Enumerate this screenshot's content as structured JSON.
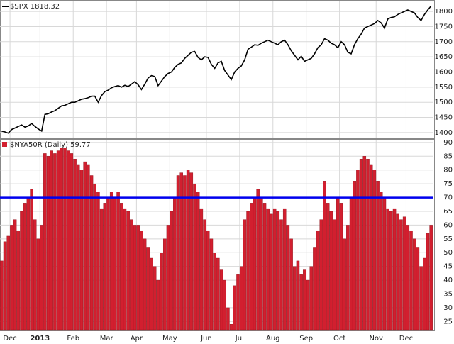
{
  "chart_data": [
    {
      "type": "line",
      "title": "$SPX 1818.32",
      "color": "#000000",
      "values": [
        1405,
        1402,
        1398,
        1410,
        1415,
        1420,
        1425,
        1418,
        1422,
        1430,
        1420,
        1412,
        1405,
        1460,
        1462,
        1468,
        1472,
        1480,
        1488,
        1490,
        1495,
        1500,
        1500,
        1505,
        1510,
        1512,
        1515,
        1520,
        1520,
        1500,
        1522,
        1535,
        1540,
        1548,
        1552,
        1555,
        1550,
        1556,
        1552,
        1560,
        1568,
        1558,
        1542,
        1560,
        1580,
        1588,
        1585,
        1555,
        1570,
        1585,
        1595,
        1600,
        1615,
        1625,
        1630,
        1645,
        1655,
        1665,
        1668,
        1648,
        1640,
        1650,
        1648,
        1625,
        1612,
        1630,
        1635,
        1605,
        1590,
        1575,
        1600,
        1612,
        1620,
        1640,
        1675,
        1682,
        1690,
        1688,
        1695,
        1700,
        1705,
        1700,
        1695,
        1690,
        1700,
        1705,
        1690,
        1670,
        1655,
        1640,
        1652,
        1635,
        1640,
        1645,
        1660,
        1680,
        1690,
        1710,
        1705,
        1695,
        1690,
        1680,
        1700,
        1690,
        1665,
        1660,
        1690,
        1710,
        1725,
        1745,
        1750,
        1755,
        1760,
        1770,
        1762,
        1745,
        1775,
        1780,
        1782,
        1790,
        1795,
        1800,
        1805,
        1800,
        1795,
        1780,
        1770,
        1790,
        1805,
        1818
      ],
      "xlim": [
        0,
        130
      ],
      "ylim": [
        1381,
        1833
      ],
      "yticks": [
        1400,
        1450,
        1500,
        1550,
        1600,
        1650,
        1700,
        1750,
        1800
      ],
      "grid": true
    },
    {
      "type": "bar",
      "title": "$NYA50R (Daily) 59.77",
      "color": "#d21f2f",
      "hline": 70,
      "hline_color": "#0000ee",
      "values": [
        47,
        54,
        56,
        60,
        62,
        58,
        65,
        68,
        70,
        73,
        62,
        55,
        60,
        86,
        85,
        87,
        86,
        87,
        88,
        88,
        87,
        86,
        84,
        82,
        80,
        83,
        82,
        78,
        75,
        72,
        66,
        68,
        70,
        72,
        70,
        72,
        68,
        66,
        65,
        62,
        60,
        60,
        58,
        55,
        52,
        48,
        45,
        40,
        50,
        55,
        60,
        65,
        70,
        78,
        79,
        78,
        80,
        79,
        75,
        72,
        66,
        62,
        58,
        55,
        50,
        48,
        44,
        40,
        30,
        24,
        38,
        42,
        45,
        62,
        65,
        68,
        70,
        73,
        70,
        68,
        66,
        64,
        66,
        65,
        62,
        66,
        60,
        55,
        45,
        47,
        42,
        44,
        40,
        45,
        52,
        58,
        62,
        76,
        68,
        65,
        62,
        70,
        68,
        55,
        60,
        70,
        76,
        80,
        84,
        85,
        84,
        82,
        80,
        76,
        72,
        70,
        66,
        65,
        66,
        64,
        62,
        63,
        60,
        58,
        55,
        52,
        45,
        48,
        57,
        60
      ],
      "xlim": [
        0,
        130
      ],
      "ylim": [
        22,
        91
      ],
      "yticks": [
        25,
        30,
        35,
        40,
        45,
        50,
        55,
        60,
        65,
        70,
        75,
        80,
        85,
        90
      ],
      "xticks": [
        {
          "value": 3,
          "label": "Dec"
        },
        {
          "value": 12,
          "label": "2013"
        },
        {
          "value": 22,
          "label": "Feb"
        },
        {
          "value": 32,
          "label": "Mar"
        },
        {
          "value": 41,
          "label": "Apr"
        },
        {
          "value": 51,
          "label": "May"
        },
        {
          "value": 62,
          "label": "Jun"
        },
        {
          "value": 72,
          "label": "Jul"
        },
        {
          "value": 82,
          "label": "Aug"
        },
        {
          "value": 92,
          "label": "Sep"
        },
        {
          "value": 102,
          "label": "Oct"
        },
        {
          "value": 113,
          "label": "Nov"
        },
        {
          "value": 122,
          "label": "Dec"
        }
      ],
      "grid": true
    }
  ]
}
